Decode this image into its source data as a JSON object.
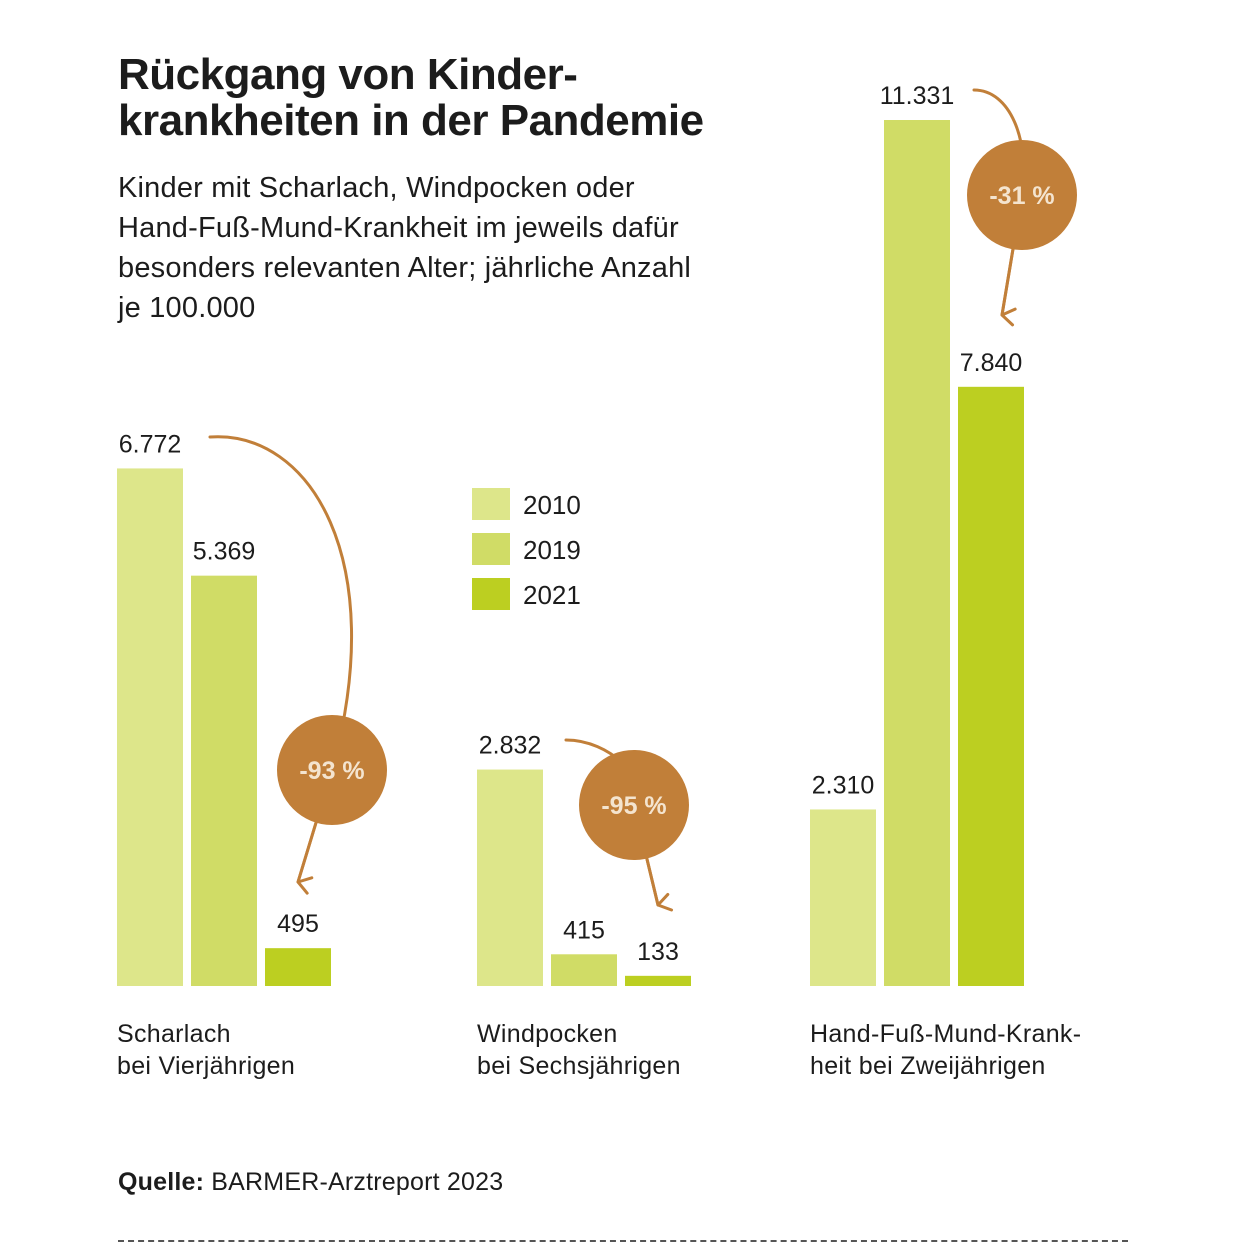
{
  "chart_data": {
    "type": "bar",
    "title": "Rückgang von Kinder-\nkrankheiten in der Pandemie",
    "subtitle": "Kinder mit Scharlach, Windpocken oder Hand-Fuß-Mund-Krankheit im jeweils dafür besonders relevanten Alter; jährliche Anzahl je 100.000",
    "categories": [
      "Scharlach\nbei Vierjährigen",
      "Windpocken\nbei Sechsjährigen",
      "Hand-Fuß-Mund-Krank-\nheit bei Zweijährigen"
    ],
    "series": [
      {
        "name": "2010",
        "values": [
          6772,
          2832,
          2310
        ],
        "labels": [
          "6.772",
          "2.832",
          "2.310"
        ]
      },
      {
        "name": "2019",
        "values": [
          5369,
          415,
          11331
        ],
        "labels": [
          "5.369",
          "415",
          "11.331"
        ]
      },
      {
        "name": "2021",
        "values": [
          495,
          133,
          7840
        ],
        "labels": [
          "495",
          "133",
          "7.840"
        ]
      }
    ],
    "changes": [
      {
        "category": 0,
        "from_series": 0,
        "to_series": 2,
        "label": "-93 %"
      },
      {
        "category": 1,
        "from_series": 0,
        "to_series": 2,
        "label": "-95 %"
      },
      {
        "category": 2,
        "from_series": 1,
        "to_series": 2,
        "label": "-31 %"
      }
    ],
    "ylim": [
      0,
      11331
    ],
    "grid": false,
    "legend_position": "center",
    "colors": {
      "2010": "#dde68a",
      "2019": "#d0dc66",
      "2021": "#bccf21",
      "badge": "#c17f39",
      "arrow": "#c17f39"
    }
  },
  "source": {
    "label": "Quelle:",
    "text": " BARMER-Arztreport 2023"
  }
}
